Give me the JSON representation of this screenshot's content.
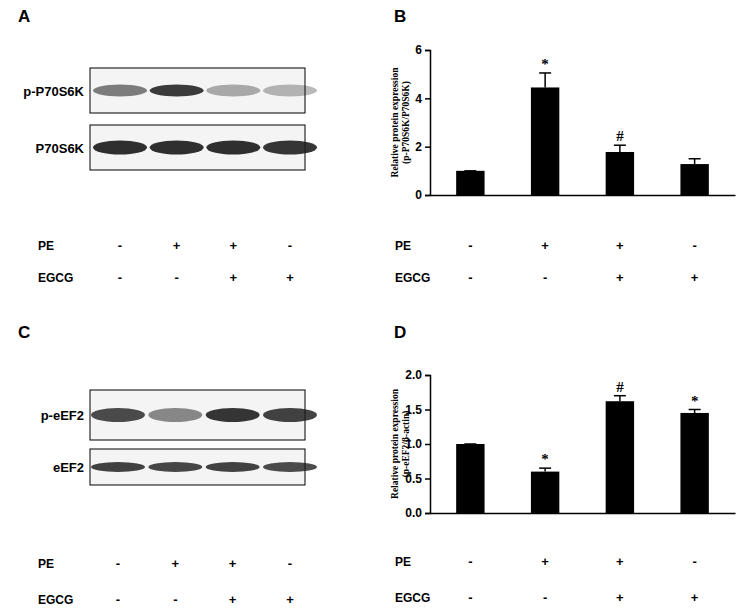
{
  "chart_data": [
    {
      "type": "bar",
      "title": "B",
      "ylabel": [
        "Relative protein expression",
        "(p-P70S6K/P70S6K)"
      ],
      "categories": [
        null,
        null,
        null,
        null
      ],
      "values": [
        1.0,
        4.45,
        1.78,
        1.28
      ],
      "errors": [
        0,
        0.6,
        0.28,
        0.22
      ],
      "color": "#000000",
      "ylim": [
        0,
        6
      ],
      "yticks": [
        0,
        2,
        4,
        6
      ],
      "annotations": [
        {
          "index": 1,
          "text": "*"
        },
        {
          "index": 2,
          "text": "#"
        }
      ],
      "conditions": [
        {
          "label": "PE",
          "signs": [
            "-",
            "+",
            "+",
            "-"
          ]
        },
        {
          "label": "EGCG",
          "signs": [
            "-",
            "-",
            "+",
            "+"
          ]
        }
      ]
    },
    {
      "type": "bar",
      "title": "D",
      "ylabel": [
        "Relative protein expression",
        "(p-eEF2/β-actin)"
      ],
      "categories": [
        null,
        null,
        null,
        null
      ],
      "values": [
        1.0,
        0.6,
        1.62,
        1.45
      ],
      "errors": [
        0,
        0.05,
        0.08,
        0.05
      ],
      "color": "#000000",
      "ylim": [
        0,
        2.0
      ],
      "yticks": [
        {
          "value": 0,
          "label": "0.0"
        },
        {
          "value": 0.5,
          "label": "0.5"
        },
        {
          "value": 1.0,
          "label": "1.0"
        },
        {
          "value": 1.5,
          "label": "1.5"
        },
        {
          "value": 2.0,
          "label": "2.0"
        }
      ],
      "annotations": [
        {
          "index": 1,
          "text": "*"
        },
        {
          "index": 2,
          "text": "#"
        },
        {
          "index": 3,
          "text": "*"
        }
      ],
      "conditions": [
        {
          "label": "PE",
          "signs": [
            "-",
            "+",
            "+",
            "-"
          ]
        },
        {
          "label": "EGCG",
          "signs": [
            "-",
            "-",
            "+",
            "+"
          ]
        }
      ]
    }
  ],
  "blots": [
    {
      "title": "A",
      "rows": [
        "p-P70S6K",
        "P70S6K"
      ],
      "conditions": [
        {
          "label": "PE",
          "signs": [
            "-",
            "+",
            "+",
            "-"
          ]
        },
        {
          "label": "EGCG",
          "signs": [
            "-",
            "-",
            "+",
            "+"
          ]
        }
      ]
    },
    {
      "title": "C",
      "rows": [
        "p-eEF2",
        "eEF2"
      ],
      "conditions": [
        {
          "label": "PE",
          "signs": [
            "-",
            "+",
            "+",
            "-"
          ]
        },
        {
          "label": "EGCG",
          "signs": [
            "-",
            "-",
            "+",
            "+"
          ]
        }
      ]
    }
  ]
}
